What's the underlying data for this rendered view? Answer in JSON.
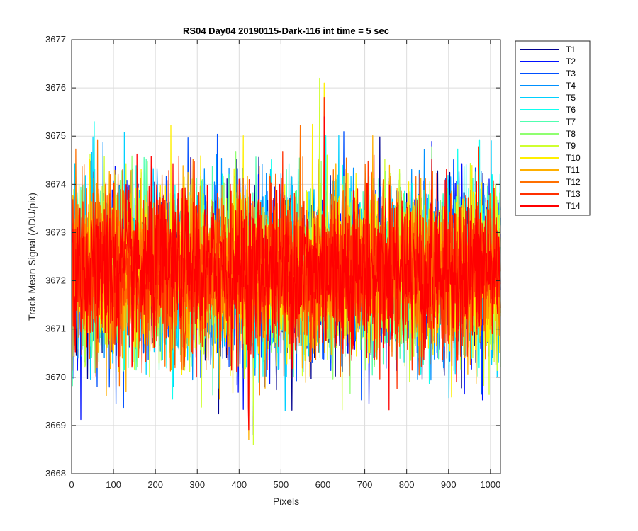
{
  "chart_data": {
    "type": "line",
    "title": "RS04 Day04 20190115-Dark-116 int time = 5 sec",
    "xlabel": "Pixels",
    "ylabel": "Track Mean Signal (ADU/pix)",
    "xlim": [
      0,
      1024
    ],
    "ylim": [
      3668,
      3677
    ],
    "xticks": [
      0,
      100,
      200,
      300,
      400,
      500,
      600,
      700,
      800,
      900,
      1000
    ],
    "yticks": [
      3668,
      3669,
      3670,
      3671,
      3672,
      3673,
      3674,
      3675,
      3676,
      3677
    ],
    "grid": true,
    "legend_position": "outside-top-right",
    "series": [
      {
        "name": "T1",
        "color": "#00008f",
        "mean": 3672.2,
        "min": 3668.8,
        "max": 3675.0
      },
      {
        "name": "T2",
        "color": "#0010ff",
        "mean": 3672.2,
        "min": 3669.0,
        "max": 3675.0
      },
      {
        "name": "T3",
        "color": "#0050ff",
        "mean": 3672.2,
        "min": 3669.2,
        "max": 3675.1
      },
      {
        "name": "T4",
        "color": "#0090ff",
        "mean": 3672.2,
        "min": 3669.2,
        "max": 3675.2
      },
      {
        "name": "T5",
        "color": "#00d0ff",
        "mean": 3672.2,
        "min": 3669.3,
        "max": 3675.2
      },
      {
        "name": "T6",
        "color": "#10ffef",
        "mean": 3672.2,
        "min": 3669.4,
        "max": 3675.3
      },
      {
        "name": "T7",
        "color": "#50ffaf",
        "mean": 3672.2,
        "min": 3669.5,
        "max": 3675.3
      },
      {
        "name": "T8",
        "color": "#8fff70",
        "mean": 3672.2,
        "min": 3669.5,
        "max": 3675.6
      },
      {
        "name": "T9",
        "color": "#cfff30",
        "mean": 3672.2,
        "min": 3668.6,
        "max": 3676.2
      },
      {
        "name": "T10",
        "color": "#ffef00",
        "mean": 3672.2,
        "min": 3669.5,
        "max": 3676.1
      },
      {
        "name": "T11",
        "color": "#ffaf00",
        "mean": 3672.2,
        "min": 3668.7,
        "max": 3675.5
      },
      {
        "name": "T12",
        "color": "#ff7000",
        "mean": 3672.2,
        "min": 3669.2,
        "max": 3675.4
      },
      {
        "name": "T13",
        "color": "#ff3000",
        "mean": 3672.2,
        "min": 3669.6,
        "max": 3675.8
      },
      {
        "name": "T14",
        "color": "#ff0000",
        "mean": 3672.2,
        "min": 3668.9,
        "max": 3675.4
      }
    ]
  }
}
